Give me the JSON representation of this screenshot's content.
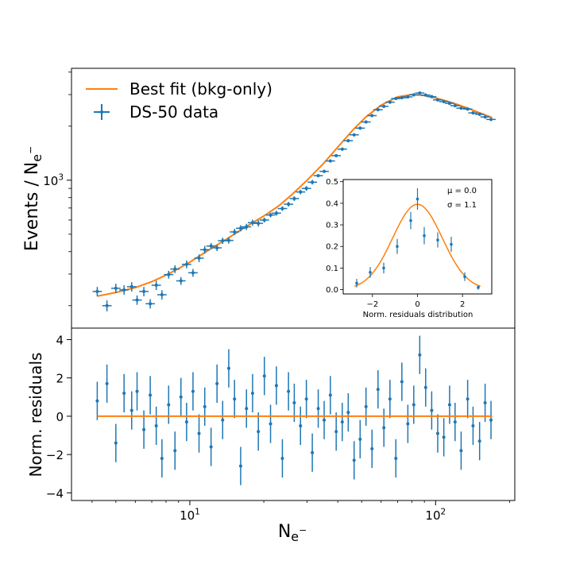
{
  "chart_data": [
    {
      "type": "scatter",
      "panel": "main",
      "xscale": "log",
      "yscale": "log",
      "xlim": [
        3.3,
        210
      ],
      "ylim": [
        150,
        4200
      ],
      "xlabel": "N_{e^-}",
      "ylabel": "Events / N_{e^-}",
      "yticks": [
        {
          "value": 1000,
          "label": "10^3"
        }
      ],
      "legend": {
        "position": "top-left",
        "entries": [
          {
            "label": "Best fit (bkg-only)",
            "kind": "line"
          },
          {
            "label": "DS-50 data",
            "kind": "errorbar"
          }
        ]
      },
      "series": [
        {
          "name": "Best fit (bkg-only)",
          "style": "line",
          "x": [
            4.2,
            5,
            6,
            7,
            8,
            9,
            10,
            11,
            12,
            14,
            16,
            18,
            20,
            23,
            26,
            30,
            35,
            40,
            46,
            52,
            60,
            70,
            80,
            90,
            100,
            110,
            120,
            135,
            150,
            170
          ],
          "y": [
            226,
            237,
            252,
            272,
            296,
            322,
            350,
            380,
            410,
            467,
            525,
            580,
            632,
            720,
            830,
            1000,
            1240,
            1530,
            1900,
            2250,
            2620,
            2910,
            3000,
            2960,
            2870,
            2770,
            2670,
            2520,
            2380,
            2230
          ]
        },
        {
          "name": "DS-50 data",
          "style": "errorbar",
          "x": [
            4.2,
            4.6,
            5.0,
            5.4,
            5.8,
            6.1,
            6.5,
            6.9,
            7.3,
            7.7,
            8.2,
            8.7,
            9.2,
            9.7,
            10.3,
            10.9,
            11.5,
            12.2,
            12.9,
            13.6,
            14.4,
            15.2,
            16.1,
            17.0,
            18.0,
            19.0,
            20.1,
            21.3,
            22.5,
            23.8,
            25.2,
            26.6,
            28.2,
            29.8,
            31.5,
            33.3,
            35.2,
            37.3,
            39.4,
            41.7,
            44.1,
            46.6,
            49.3,
            52.1,
            55.1,
            58.3,
            61.6,
            65.2,
            68.9,
            72.9,
            77.1,
            81.5,
            86.2,
            91.1,
            96.4,
            102,
            108,
            114,
            120,
            127,
            135,
            142,
            151,
            159,
            168
          ],
          "y": [
            240,
            200,
            250,
            245,
            255,
            215,
            240,
            205,
            260,
            230,
            298,
            320,
            275,
            340,
            305,
            368,
            410,
            430,
            420,
            460,
            462,
            515,
            540,
            550,
            580,
            575,
            600,
            640,
            655,
            695,
            735,
            790,
            860,
            900,
            975,
            1060,
            1120,
            1280,
            1370,
            1490,
            1660,
            1790,
            1950,
            2110,
            2290,
            2470,
            2580,
            2720,
            2850,
            2880,
            2910,
            2990,
            3060,
            2980,
            2920,
            2800,
            2740,
            2680,
            2600,
            2520,
            2490,
            2370,
            2330,
            2250,
            2180
          ],
          "yerr_frac": [
            0.06,
            0.07,
            0.06,
            0.06,
            0.06,
            0.06,
            0.06,
            0.06,
            0.06,
            0.06,
            0.05,
            0.05,
            0.05,
            0.05,
            0.05,
            0.05,
            0.05,
            0.04,
            0.04,
            0.04,
            0.04,
            0.04,
            0.04,
            0.04,
            0.04,
            0.04,
            0.03,
            0.03,
            0.03,
            0.03,
            0.03,
            0.03,
            0.03,
            0.03,
            0.03,
            0.02,
            0.02,
            0.02,
            0.02,
            0.02,
            0.02,
            0.02,
            0.02,
            0.02,
            0.02,
            0.02,
            0.02,
            0.02,
            0.02,
            0.02,
            0.02,
            0.02,
            0.02,
            0.02,
            0.02,
            0.02,
            0.02,
            0.02,
            0.02,
            0.02,
            0.02,
            0.02,
            0.02,
            0.02,
            0.02
          ]
        }
      ]
    },
    {
      "type": "scatter",
      "panel": "residuals",
      "xscale": "log",
      "xlim": [
        3.3,
        210
      ],
      "ylim": [
        -4.4,
        4.6
      ],
      "xlabel": "N_{e^-}",
      "ylabel": "Norm. residuals",
      "xticks": [
        {
          "value": 10,
          "label": "10^1"
        },
        {
          "value": 100,
          "label": "10^2"
        }
      ],
      "yticks": [
        -4,
        -2,
        0,
        2,
        4
      ],
      "series": [
        {
          "name": "Best fit (bkg-only)",
          "style": "line",
          "x": [
            4.2,
            170
          ],
          "y": [
            0,
            0
          ]
        },
        {
          "name": "DS-50 data",
          "style": "errorbar",
          "yerr": 1.0,
          "x": [
            4.2,
            4.6,
            5.0,
            5.4,
            5.8,
            6.1,
            6.5,
            6.9,
            7.3,
            7.7,
            8.2,
            8.7,
            9.2,
            9.7,
            10.3,
            10.9,
            11.5,
            12.2,
            12.9,
            13.6,
            14.4,
            15.2,
            16.1,
            17.0,
            18.0,
            19.0,
            20.1,
            21.3,
            22.5,
            23.8,
            25.2,
            26.6,
            28.2,
            29.8,
            31.5,
            33.3,
            35.2,
            37.3,
            39.4,
            41.7,
            44.1,
            46.6,
            49.3,
            52.1,
            55.1,
            58.3,
            61.6,
            65.2,
            68.9,
            72.9,
            77.1,
            81.5,
            86.2,
            91.1,
            96.4,
            102,
            108,
            114,
            120,
            127,
            135,
            142,
            151,
            159,
            168
          ],
          "y": [
            0.8,
            1.7,
            -1.4,
            1.2,
            0.3,
            1.3,
            -0.7,
            1.1,
            -0.5,
            -2.2,
            0.6,
            -1.8,
            1.0,
            -0.3,
            1.3,
            -0.9,
            0.5,
            -1.6,
            1.7,
            -0.2,
            2.5,
            0.9,
            -2.6,
            0.4,
            1.2,
            -0.8,
            2.1,
            -0.4,
            1.6,
            -2.2,
            1.3,
            0.7,
            -0.5,
            0.9,
            -1.9,
            0.4,
            -0.2,
            1.1,
            -0.8,
            -0.3,
            0.2,
            -2.3,
            -1.2,
            0.5,
            -1.7,
            1.4,
            -0.6,
            0.9,
            -2.2,
            1.8,
            -0.4,
            0.6,
            3.2,
            1.5,
            0.3,
            -0.9,
            -1.1,
            0.6,
            -0.3,
            -1.8,
            0.9,
            -0.5,
            -1.3,
            0.7,
            -0.2
          ]
        }
      ]
    },
    {
      "type": "scatter",
      "panel": "inset",
      "xlim": [
        -3.3,
        3.3
      ],
      "ylim": [
        -0.02,
        0.51
      ],
      "xlabel": "Norm. residuals distribution",
      "xticks": [
        {
          "value": -2,
          "label": "−2"
        },
        {
          "value": 0,
          "label": "0"
        },
        {
          "value": 2,
          "label": "2"
        }
      ],
      "yticks": [
        0.0,
        0.1,
        0.2,
        0.3,
        0.4,
        0.5
      ],
      "annotations": [
        "μ = 0.0",
        "σ = 1.1"
      ],
      "mu": 0.0,
      "sigma": 1.1,
      "series": [
        {
          "name": "Gaussian fit",
          "style": "line",
          "mu": 0.0,
          "sigma": 1.1
        },
        {
          "name": "Histogram",
          "style": "errorbar",
          "x": [
            -2.7,
            -2.1,
            -1.5,
            -0.9,
            -0.3,
            0.0,
            0.3,
            0.9,
            1.5,
            2.1,
            2.7
          ],
          "y": [
            0.03,
            0.08,
            0.1,
            0.2,
            0.32,
            0.42,
            0.25,
            0.23,
            0.21,
            0.06,
            0.01
          ],
          "yerr": [
            0.02,
            0.025,
            0.025,
            0.035,
            0.04,
            0.05,
            0.04,
            0.035,
            0.035,
            0.02,
            0.01
          ]
        }
      ]
    }
  ]
}
